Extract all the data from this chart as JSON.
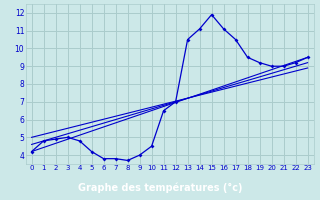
{
  "xlabel": "Graphe des températures (°c)",
  "background_color": "#cce8e8",
  "grid_color": "#aacccc",
  "line_color": "#0000cc",
  "label_bg_color": "#2255bb",
  "label_text_color": "#ffffff",
  "xlim": [
    -0.5,
    23.5
  ],
  "ylim": [
    3.5,
    12.5
  ],
  "xticks": [
    0,
    1,
    2,
    3,
    4,
    5,
    6,
    7,
    8,
    9,
    10,
    11,
    12,
    13,
    14,
    15,
    16,
    17,
    18,
    19,
    20,
    21,
    22,
    23
  ],
  "yticks": [
    4,
    5,
    6,
    7,
    8,
    9,
    10,
    11,
    12
  ],
  "main_x": [
    0,
    1,
    2,
    3,
    4,
    5,
    6,
    7,
    8,
    9,
    10,
    11,
    12,
    13,
    14,
    15,
    16,
    17,
    18,
    19,
    20,
    21,
    22,
    23
  ],
  "main_y": [
    4.2,
    4.8,
    4.9,
    5.0,
    4.8,
    4.2,
    3.8,
    3.8,
    3.7,
    4.0,
    4.5,
    6.5,
    7.0,
    10.5,
    11.1,
    11.9,
    11.1,
    10.5,
    9.5,
    9.2,
    9.0,
    9.0,
    9.2,
    9.5
  ],
  "line2_x": [
    0,
    23
  ],
  "line2_y": [
    4.2,
    9.5
  ],
  "line3_x": [
    0,
    23
  ],
  "line3_y": [
    4.6,
    9.2
  ],
  "line4_x": [
    0,
    23
  ],
  "line4_y": [
    5.0,
    8.9
  ]
}
